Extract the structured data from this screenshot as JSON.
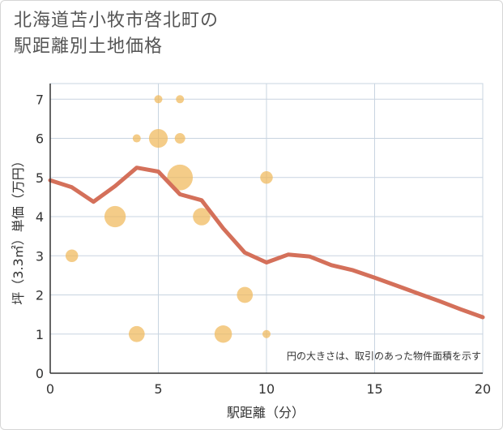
{
  "chart_data": {
    "type": "scatter",
    "title_line1": "北海道苫小牧市啓北町の",
    "title_line2": "駅距離別土地価格",
    "xlabel": "駅距離（分）",
    "ylabel": "坪（3.3㎡）単価（万円）",
    "note": "円の大きさは、取引のあった物件面積を示す",
    "xlim": [
      0,
      20
    ],
    "ylim": [
      0,
      7.4
    ],
    "x_ticks": [
      "0",
      "5",
      "10",
      "15",
      "20"
    ],
    "x_tick_values": [
      0,
      5,
      10,
      15,
      20
    ],
    "y_ticks": [
      "0",
      "1",
      "2",
      "3",
      "4",
      "5",
      "6",
      "7"
    ],
    "y_tick_values": [
      0,
      1,
      2,
      3,
      4,
      5,
      6,
      7
    ],
    "bubble_color": "#f0b85a",
    "line_color": "#d4705a",
    "grid": true,
    "points": [
      {
        "x": 1,
        "y": 3.0,
        "size": 2
      },
      {
        "x": 3,
        "y": 4.0,
        "size": 5
      },
      {
        "x": 4,
        "y": 6.0,
        "size": 1
      },
      {
        "x": 4,
        "y": 1.0,
        "size": 3
      },
      {
        "x": 5,
        "y": 7.0,
        "size": 1
      },
      {
        "x": 5,
        "y": 6.0,
        "size": 4
      },
      {
        "x": 6,
        "y": 7.0,
        "size": 1
      },
      {
        "x": 6,
        "y": 6.0,
        "size": 1.5
      },
      {
        "x": 6,
        "y": 5.0,
        "size": 7
      },
      {
        "x": 7,
        "y": 4.0,
        "size": 3.5
      },
      {
        "x": 8,
        "y": 1.0,
        "size": 3.5
      },
      {
        "x": 9,
        "y": 2.0,
        "size": 3
      },
      {
        "x": 10,
        "y": 5.0,
        "size": 2
      },
      {
        "x": 10,
        "y": 1.0,
        "size": 1
      }
    ],
    "trend_line": [
      {
        "x": 0,
        "y": 4.93
      },
      {
        "x": 1,
        "y": 4.75
      },
      {
        "x": 2,
        "y": 4.38
      },
      {
        "x": 3,
        "y": 4.78
      },
      {
        "x": 4,
        "y": 5.25
      },
      {
        "x": 5,
        "y": 5.15
      },
      {
        "x": 6,
        "y": 4.57
      },
      {
        "x": 7,
        "y": 4.42
      },
      {
        "x": 8,
        "y": 3.7
      },
      {
        "x": 9,
        "y": 3.08
      },
      {
        "x": 10,
        "y": 2.83
      },
      {
        "x": 11,
        "y": 3.03
      },
      {
        "x": 12,
        "y": 2.98
      },
      {
        "x": 13,
        "y": 2.76
      },
      {
        "x": 14,
        "y": 2.63
      },
      {
        "x": 15,
        "y": 2.44
      },
      {
        "x": 16,
        "y": 2.24
      },
      {
        "x": 17,
        "y": 2.04
      },
      {
        "x": 18,
        "y": 1.84
      },
      {
        "x": 19,
        "y": 1.63
      },
      {
        "x": 20,
        "y": 1.43
      }
    ]
  }
}
